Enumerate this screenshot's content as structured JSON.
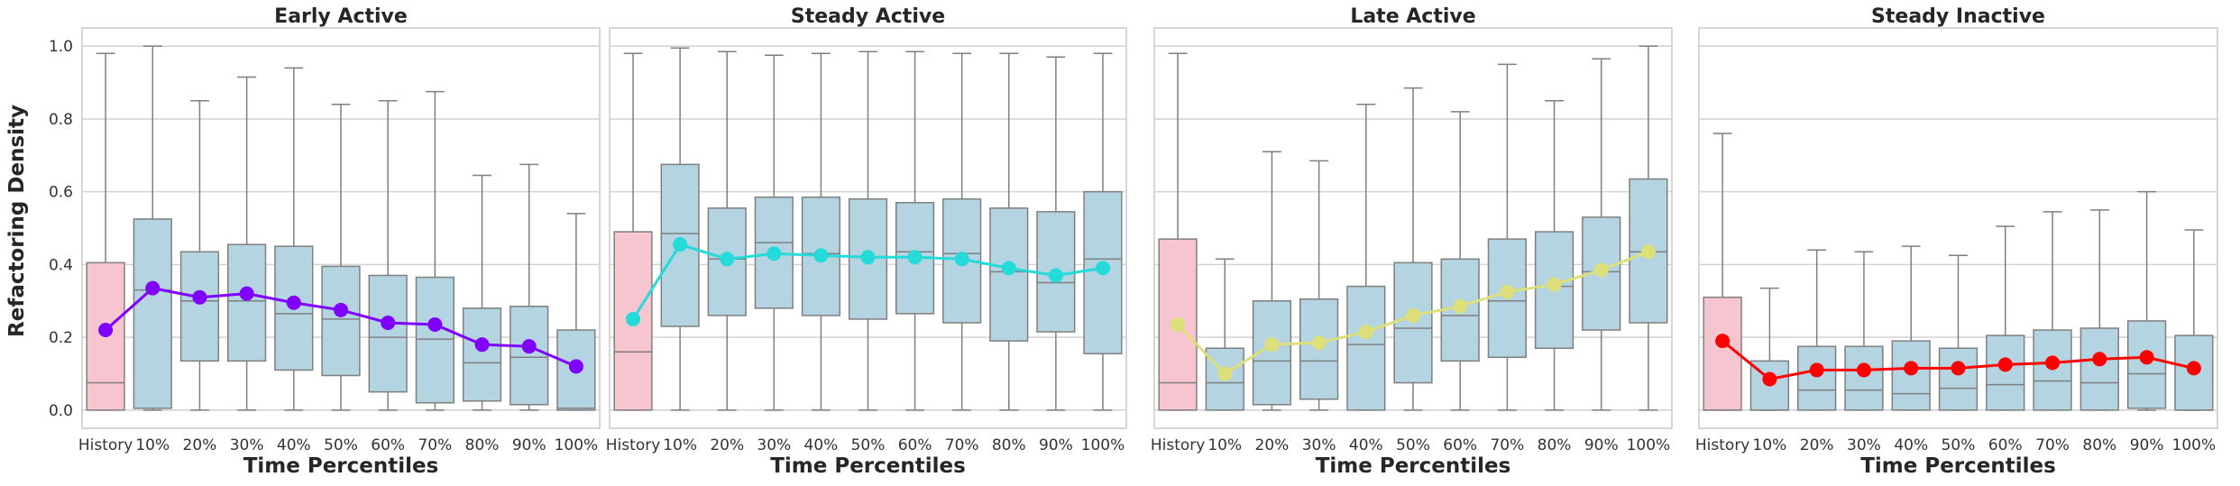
{
  "figure": {
    "ylabel": "Refactoring Density",
    "xlabel": "Time Percentiles",
    "yticks": [
      "0.0",
      "0.2",
      "0.4",
      "0.6",
      "0.8",
      "1.0"
    ],
    "categories": [
      "History",
      "10%",
      "20%",
      "30%",
      "40%",
      "50%",
      "60%",
      "70%",
      "80%",
      "90%",
      "100%"
    ]
  },
  "chart_data": [
    {
      "type": "box",
      "title": "Early Active",
      "xlabel": "Time Percentiles",
      "ylabel": "Refactoring Density",
      "ylim": [
        -0.05,
        1.05
      ],
      "grid": true,
      "categories": [
        "History",
        "10%",
        "20%",
        "30%",
        "40%",
        "50%",
        "60%",
        "70%",
        "80%",
        "90%",
        "100%"
      ],
      "box_colors": {
        "History": "#f7c5d0",
        "default": "#b3d4e0"
      },
      "line_color": "#7f00ff",
      "boxes": [
        {
          "q1": 0.0,
          "median": 0.075,
          "q3": 0.405,
          "lo": 0.0,
          "hi": 0.98
        },
        {
          "q1": 0.005,
          "median": 0.33,
          "q3": 0.525,
          "lo": 0.0,
          "hi": 1.0
        },
        {
          "q1": 0.135,
          "median": 0.3,
          "q3": 0.435,
          "lo": 0.0,
          "hi": 0.85
        },
        {
          "q1": 0.135,
          "median": 0.3,
          "q3": 0.455,
          "lo": 0.0,
          "hi": 0.915
        },
        {
          "q1": 0.11,
          "median": 0.265,
          "q3": 0.45,
          "lo": 0.0,
          "hi": 0.94
        },
        {
          "q1": 0.095,
          "median": 0.25,
          "q3": 0.395,
          "lo": 0.0,
          "hi": 0.84
        },
        {
          "q1": 0.05,
          "median": 0.2,
          "q3": 0.37,
          "lo": 0.0,
          "hi": 0.85
        },
        {
          "q1": 0.02,
          "median": 0.195,
          "q3": 0.365,
          "lo": 0.0,
          "hi": 0.875
        },
        {
          "q1": 0.025,
          "median": 0.13,
          "q3": 0.28,
          "lo": 0.0,
          "hi": 0.645
        },
        {
          "q1": 0.015,
          "median": 0.145,
          "q3": 0.285,
          "lo": 0.0,
          "hi": 0.675
        },
        {
          "q1": 0.0,
          "median": 0.005,
          "q3": 0.22,
          "lo": 0.0,
          "hi": 0.54
        }
      ],
      "means": [
        0.22,
        0.335,
        0.31,
        0.32,
        0.295,
        0.275,
        0.24,
        0.235,
        0.18,
        0.175,
        0.12
      ]
    },
    {
      "type": "box",
      "title": "Steady Active",
      "xlabel": "Time Percentiles",
      "ylabel": "",
      "ylim": [
        -0.05,
        1.05
      ],
      "grid": true,
      "categories": [
        "History",
        "10%",
        "20%",
        "30%",
        "40%",
        "50%",
        "60%",
        "70%",
        "80%",
        "90%",
        "100%"
      ],
      "box_colors": {
        "History": "#f7c5d0",
        "default": "#b3d4e0"
      },
      "line_color": "#25dbd9",
      "boxes": [
        {
          "q1": 0.0,
          "median": 0.16,
          "q3": 0.49,
          "lo": 0.0,
          "hi": 0.98
        },
        {
          "q1": 0.23,
          "median": 0.485,
          "q3": 0.675,
          "lo": 0.0,
          "hi": 0.995
        },
        {
          "q1": 0.26,
          "median": 0.415,
          "q3": 0.555,
          "lo": 0.0,
          "hi": 0.985
        },
        {
          "q1": 0.28,
          "median": 0.46,
          "q3": 0.585,
          "lo": 0.0,
          "hi": 0.975
        },
        {
          "q1": 0.26,
          "median": 0.43,
          "q3": 0.585,
          "lo": 0.0,
          "hi": 0.98
        },
        {
          "q1": 0.25,
          "median": 0.42,
          "q3": 0.58,
          "lo": 0.0,
          "hi": 0.985
        },
        {
          "q1": 0.265,
          "median": 0.435,
          "q3": 0.57,
          "lo": 0.0,
          "hi": 0.985
        },
        {
          "q1": 0.24,
          "median": 0.43,
          "q3": 0.58,
          "lo": 0.0,
          "hi": 0.98
        },
        {
          "q1": 0.19,
          "median": 0.38,
          "q3": 0.555,
          "lo": 0.0,
          "hi": 0.98
        },
        {
          "q1": 0.215,
          "median": 0.35,
          "q3": 0.545,
          "lo": 0.0,
          "hi": 0.97
        },
        {
          "q1": 0.155,
          "median": 0.415,
          "q3": 0.6,
          "lo": 0.0,
          "hi": 0.98
        }
      ],
      "means": [
        0.25,
        0.455,
        0.415,
        0.43,
        0.425,
        0.42,
        0.42,
        0.415,
        0.39,
        0.37,
        0.39
      ]
    },
    {
      "type": "box",
      "title": "Late Active",
      "xlabel": "Time Percentiles",
      "ylabel": "",
      "ylim": [
        -0.05,
        1.05
      ],
      "grid": true,
      "categories": [
        "History",
        "10%",
        "20%",
        "30%",
        "40%",
        "50%",
        "60%",
        "70%",
        "80%",
        "90%",
        "100%"
      ],
      "box_colors": {
        "History": "#f7c5d0",
        "default": "#b3d4e0"
      },
      "line_color": "#dde07a",
      "boxes": [
        {
          "q1": 0.0,
          "median": 0.075,
          "q3": 0.47,
          "lo": 0.0,
          "hi": 0.98
        },
        {
          "q1": 0.0,
          "median": 0.075,
          "q3": 0.17,
          "lo": 0.0,
          "hi": 0.415
        },
        {
          "q1": 0.015,
          "median": 0.135,
          "q3": 0.3,
          "lo": 0.0,
          "hi": 0.71
        },
        {
          "q1": 0.03,
          "median": 0.135,
          "q3": 0.305,
          "lo": 0.0,
          "hi": 0.685
        },
        {
          "q1": 0.0,
          "median": 0.18,
          "q3": 0.34,
          "lo": 0.0,
          "hi": 0.84
        },
        {
          "q1": 0.075,
          "median": 0.225,
          "q3": 0.405,
          "lo": 0.0,
          "hi": 0.885
        },
        {
          "q1": 0.135,
          "median": 0.26,
          "q3": 0.415,
          "lo": 0.0,
          "hi": 0.82
        },
        {
          "q1": 0.145,
          "median": 0.3,
          "q3": 0.47,
          "lo": 0.0,
          "hi": 0.95
        },
        {
          "q1": 0.17,
          "median": 0.34,
          "q3": 0.49,
          "lo": 0.0,
          "hi": 0.85
        },
        {
          "q1": 0.22,
          "median": 0.38,
          "q3": 0.53,
          "lo": 0.0,
          "hi": 0.965
        },
        {
          "q1": 0.24,
          "median": 0.435,
          "q3": 0.635,
          "lo": 0.0,
          "hi": 1.0
        }
      ],
      "means": [
        0.235,
        0.1,
        0.18,
        0.185,
        0.215,
        0.26,
        0.285,
        0.325,
        0.345,
        0.385,
        0.435
      ]
    },
    {
      "type": "box",
      "title": "Steady Inactive",
      "xlabel": "Time Percentiles",
      "ylabel": "",
      "ylim": [
        -0.05,
        1.05
      ],
      "grid": true,
      "categories": [
        "History",
        "10%",
        "20%",
        "30%",
        "40%",
        "50%",
        "60%",
        "70%",
        "80%",
        "90%",
        "100%"
      ],
      "box_colors": {
        "History": "#f7c5d0",
        "default": "#b3d4e0"
      },
      "line_color": "#ff0000",
      "boxes": [
        {
          "q1": 0.0,
          "median": 0.0,
          "q3": 0.31,
          "lo": 0.0,
          "hi": 0.76
        },
        {
          "q1": 0.0,
          "median": 0.0,
          "q3": 0.135,
          "lo": 0.0,
          "hi": 0.335
        },
        {
          "q1": 0.0,
          "median": 0.055,
          "q3": 0.175,
          "lo": 0.0,
          "hi": 0.44
        },
        {
          "q1": 0.0,
          "median": 0.055,
          "q3": 0.175,
          "lo": 0.0,
          "hi": 0.435
        },
        {
          "q1": 0.0,
          "median": 0.045,
          "q3": 0.19,
          "lo": 0.0,
          "hi": 0.45
        },
        {
          "q1": 0.0,
          "median": 0.06,
          "q3": 0.17,
          "lo": 0.0,
          "hi": 0.425
        },
        {
          "q1": 0.0,
          "median": 0.07,
          "q3": 0.205,
          "lo": 0.0,
          "hi": 0.505
        },
        {
          "q1": 0.0,
          "median": 0.08,
          "q3": 0.22,
          "lo": 0.0,
          "hi": 0.545
        },
        {
          "q1": 0.0,
          "median": 0.075,
          "q3": 0.225,
          "lo": 0.0,
          "hi": 0.55
        },
        {
          "q1": 0.005,
          "median": 0.1,
          "q3": 0.245,
          "lo": 0.0,
          "hi": 0.6
        },
        {
          "q1": 0.0,
          "median": 0.0,
          "q3": 0.205,
          "lo": 0.0,
          "hi": 0.495
        }
      ],
      "means": [
        0.19,
        0.085,
        0.11,
        0.11,
        0.115,
        0.115,
        0.125,
        0.13,
        0.14,
        0.145,
        0.115
      ]
    }
  ]
}
